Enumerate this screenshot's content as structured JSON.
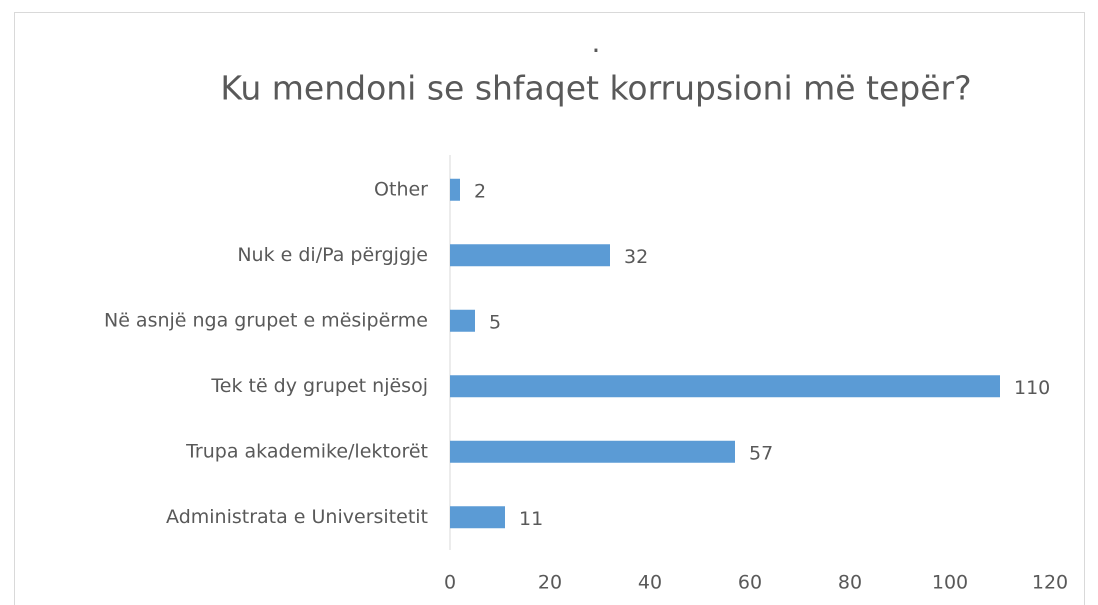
{
  "chart_data": {
    "type": "bar",
    "orientation": "horizontal",
    "title": "Ku mendoni se shfaqet korrupsioni më tepër?",
    "subtitle": ".",
    "categories": [
      "Other",
      "Nuk e di/Pa përgjgje",
      "Në asnjë nga grupet e mësipërme",
      "Tek të dy grupet njësoj",
      "Trupa akademike/lektorët",
      "Administrata e Universitetit"
    ],
    "values": [
      2,
      32,
      5,
      110,
      57,
      11
    ],
    "color": "#5b9bd5",
    "xlim": [
      0,
      120
    ],
    "xticks": [
      0,
      20,
      40,
      60,
      80,
      100,
      120
    ],
    "grid": false
  }
}
